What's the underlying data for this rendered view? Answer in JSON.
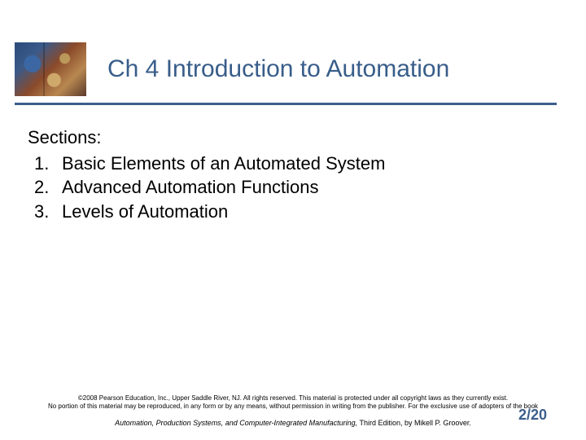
{
  "colors": {
    "title": "#385d8a",
    "rule": "#3b5e8c",
    "body_text": "#000000",
    "footer_text": "#000000",
    "pagenum": "#3b5e8c"
  },
  "title": "Ch 4  Introduction to Automation",
  "sections_label": "Sections:",
  "items": [
    {
      "num": "1.",
      "text": "Basic Elements of an Automated System"
    },
    {
      "num": "2.",
      "text": "Advanced Automation Functions"
    },
    {
      "num": "3.",
      "text": "Levels of Automation"
    }
  ],
  "copyright_line1": "©2008 Pearson Education, Inc., Upper Saddle River, NJ. All rights reserved. This material is protected under all copyright laws as they currently exist.",
  "copyright_line2": "No portion of this material may be reproduced, in any form or by any means, without permission in writing from the publisher. For the exclusive use of adopters of the book",
  "book_title_italic": "Automation, Production Systems, and Computer-Integrated Manufacturing,",
  "book_tail": " Third Edition, by Mikell P. Groover.",
  "page_number": "2/20"
}
